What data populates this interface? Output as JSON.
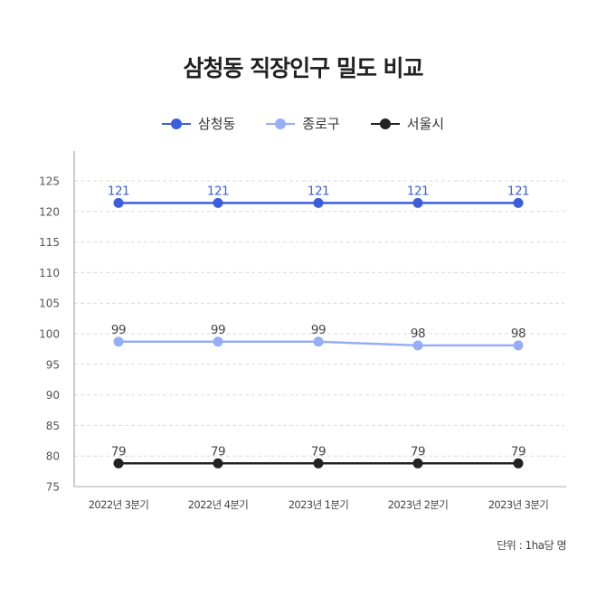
{
  "chart_data": {
    "type": "line",
    "title": "삼청동 직장인구 밀도 비교",
    "categories": [
      "2022년 3분기",
      "2022년 4분기",
      "2023년 1분기",
      "2023년 2분기",
      "2023년 3분기"
    ],
    "series": [
      {
        "name": "삼청동",
        "color": "#3b5fdb",
        "label_color": "#3b5fdb",
        "values": [
          121.4,
          121.4,
          121.4,
          121.4,
          121.4
        ],
        "labels": [
          "121",
          "121",
          "121",
          "121",
          "121"
        ]
      },
      {
        "name": "종로구",
        "color": "#94aef7",
        "label_color": "#444444",
        "values": [
          98.7,
          98.7,
          98.7,
          98.1,
          98.1
        ],
        "labels": [
          "99",
          "99",
          "99",
          "98",
          "98"
        ]
      },
      {
        "name": "서울시",
        "color": "#222222",
        "label_color": "#444444",
        "values": [
          78.8,
          78.8,
          78.8,
          78.8,
          78.8
        ],
        "labels": [
          "79",
          "79",
          "79",
          "79",
          "79"
        ]
      }
    ],
    "xlabel": "",
    "ylabel": "",
    "ylim": [
      75,
      125
    ],
    "yticks": [
      75,
      80,
      85,
      90,
      95,
      100,
      105,
      110,
      115,
      120,
      125
    ],
    "grid": true,
    "legend_position": "top",
    "unit_note": "단위 : 1ha당 명"
  },
  "title": "삼청동 직장인구 밀도 비교",
  "legend": [
    {
      "label": "삼청동",
      "color": "#3b5fdb"
    },
    {
      "label": "종로구",
      "color": "#94aef7"
    },
    {
      "label": "서울시",
      "color": "#222222"
    }
  ],
  "unit": "단위 : 1ha당 명"
}
